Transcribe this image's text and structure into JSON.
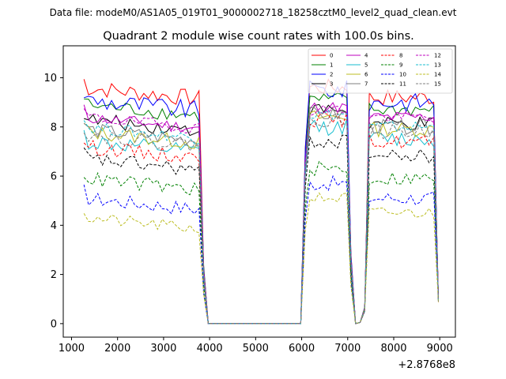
{
  "suptitle": "Data file: modeM0/AS1A05_019T01_9000002718_18258cztM0_level2_quad_clean.evt",
  "chart_data": {
    "type": "line",
    "title": "Quadrant 2 module wise count rates with 100.0s bins.",
    "xlabel": "",
    "ylabel": "",
    "x_offset_label": "+2.8768e8",
    "xlim": [
      820,
      9340
    ],
    "ylim": [
      -0.55,
      11.3
    ],
    "x_ticks": [
      1000,
      2000,
      3000,
      4000,
      5000,
      6000,
      7000,
      8000,
      9000
    ],
    "x_tick_labels": [
      "1000",
      "2000",
      "3000",
      "4000",
      "5000",
      "6000",
      "7000",
      "8000",
      "9000"
    ],
    "y_ticks": [
      0,
      2,
      4,
      6,
      8,
      10
    ],
    "y_tick_labels": [
      "0",
      "2",
      "4",
      "6",
      "8",
      "10"
    ],
    "grid": false,
    "legend": {
      "placement": "top-right",
      "columns": 4
    },
    "segments": [
      {
        "x_start": 1270,
        "x_end": 3770,
        "step": 100
      },
      {
        "x_end_ramp": [
          3870,
          3970
        ],
        "zero_span": [
          3970,
          5980
        ]
      },
      {
        "x_start": 6080,
        "x_end": 6980,
        "step": 100
      },
      {
        "x_dip": [
          7070,
          7170,
          7270,
          7370
        ],
        "x_start": 7470,
        "x_end": 8970,
        "step": 100
      }
    ],
    "series": [
      {
        "name": "0",
        "color": "#ff0000",
        "dash": "solid",
        "level1": 9.6,
        "level2": 9.6,
        "level3": 9.2,
        "noise": 0.35
      },
      {
        "name": "1",
        "color": "#008000",
        "dash": "solid",
        "level1": 8.9,
        "level2": 9.1,
        "level3": 8.7,
        "noise": 0.3
      },
      {
        "name": "2",
        "color": "#0000ff",
        "dash": "solid",
        "level1": 9.1,
        "level2": 9.5,
        "level3": 9.0,
        "noise": 0.4
      },
      {
        "name": "3",
        "color": "#000000",
        "dash": "solid",
        "level1": 8.3,
        "level2": 8.7,
        "level3": 8.1,
        "noise": 0.3
      },
      {
        "name": "4",
        "color": "#bf00bf",
        "dash": "solid",
        "level1": 8.4,
        "level2": 8.8,
        "level3": 8.4,
        "noise": 0.25
      },
      {
        "name": "5",
        "color": "#17becf",
        "dash": "solid",
        "level1": 7.4,
        "level2": 8.0,
        "level3": 7.5,
        "noise": 0.35
      },
      {
        "name": "6",
        "color": "#bcbd22",
        "dash": "solid",
        "level1": 7.8,
        "level2": 8.4,
        "level3": 7.9,
        "noise": 0.3
      },
      {
        "name": "7",
        "color": "#7f7f7f",
        "dash": "solid",
        "level1": 7.9,
        "level2": 8.5,
        "level3": 8.0,
        "noise": 0.3
      },
      {
        "name": "8",
        "color": "#ff0000",
        "dash": "dashed",
        "level1": 7.2,
        "level2": 8.3,
        "level3": 7.4,
        "noise": 0.3
      },
      {
        "name": "9",
        "color": "#008000",
        "dash": "dashed",
        "level1": 5.9,
        "level2": 6.3,
        "level3": 5.9,
        "noise": 0.3
      },
      {
        "name": "10",
        "color": "#0000ff",
        "dash": "dashed",
        "level1": 5.1,
        "level2": 5.7,
        "level3": 5.1,
        "noise": 0.3
      },
      {
        "name": "11",
        "color": "#000000",
        "dash": "dashed",
        "level1": 6.7,
        "level2": 7.4,
        "level3": 6.8,
        "noise": 0.3
      },
      {
        "name": "12",
        "color": "#bf00bf",
        "dash": "dashed",
        "level1": 8.4,
        "level2": 8.7,
        "level3": 8.4,
        "noise": 0.25
      },
      {
        "name": "13",
        "color": "#17becf",
        "dash": "dashed",
        "level1": 8.0,
        "level2": 8.5,
        "level3": 8.0,
        "noise": 0.25
      },
      {
        "name": "14",
        "color": "#bcbd22",
        "dash": "dashed",
        "level1": 4.3,
        "level2": 5.1,
        "level3": 4.5,
        "noise": 0.25
      },
      {
        "name": "15",
        "color": "#7f7f7f",
        "dash": "dashed",
        "level1": 7.7,
        "level2": 8.3,
        "level3": 7.8,
        "noise": 0.3
      }
    ]
  }
}
